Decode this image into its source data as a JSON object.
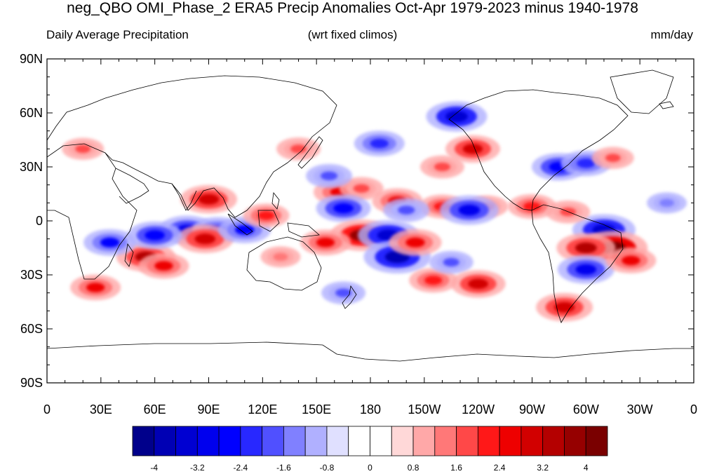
{
  "title": "neg_QBO OMI_Phase_2 ERA5 Precip Anomalies Oct-Apr 1979-2023 minus 1940-1978",
  "subtitle_left": "Daily Average Precipitation",
  "subtitle_center": "(wrt fixed climos)",
  "subtitle_right": "mm/day",
  "y_labels": [
    "90N",
    "60N",
    "30N",
    "0",
    "30S",
    "60S",
    "90S"
  ],
  "x_labels": [
    "0",
    "30E",
    "60E",
    "90E",
    "120E",
    "150E",
    "180",
    "150W",
    "120W",
    "90W",
    "60W",
    "30W",
    "0"
  ],
  "colorbar": {
    "colors": [
      "#00008b",
      "#0000b4",
      "#0000d2",
      "#0000ee",
      "#0000ff",
      "#2828ff",
      "#5050ff",
      "#8080ff",
      "#b0b0ff",
      "#e0e0ff",
      "#ffffff",
      "#ffffff",
      "#ffd8d8",
      "#ffa8a8",
      "#ff7878",
      "#ff4848",
      "#ff1818",
      "#ee0000",
      "#d20000",
      "#b40000",
      "#960000",
      "#7a0000"
    ],
    "labels": [
      "-4",
      "-3.2",
      "-2.4",
      "-1.6",
      "-0.8",
      "0",
      "0.8",
      "1.6",
      "2.4",
      "3.2",
      "4"
    ]
  },
  "anomalies": [
    {
      "lon": 163,
      "lat": 16,
      "value": 2.6
    },
    {
      "lon": 175,
      "lat": 18,
      "value": 1.8
    },
    {
      "lon": 195,
      "lat": 11,
      "value": 2.4
    },
    {
      "lon": 220,
      "lat": 8,
      "value": 2.0
    },
    {
      "lon": 245,
      "lat": 8,
      "value": 1.6
    },
    {
      "lon": 165,
      "lat": 7,
      "value": -2.8
    },
    {
      "lon": 200,
      "lat": 6,
      "value": -2.0
    },
    {
      "lon": 235,
      "lat": 6,
      "value": -3.2
    },
    {
      "lon": 175,
      "lat": -8,
      "value": 3.6
    },
    {
      "lon": 190,
      "lat": -8,
      "value": -3.4
    },
    {
      "lon": 195,
      "lat": -20,
      "value": -4.0
    },
    {
      "lon": 205,
      "lat": -12,
      "value": 2.6
    },
    {
      "lon": 215,
      "lat": -33,
      "value": 2.2
    },
    {
      "lon": 225,
      "lat": -23,
      "value": -1.8
    },
    {
      "lon": 240,
      "lat": -35,
      "value": 2.8
    },
    {
      "lon": 90,
      "lat": 12,
      "value": 3.0
    },
    {
      "lon": 78,
      "lat": -5,
      "value": -3.0
    },
    {
      "lon": 95,
      "lat": -5,
      "value": -2.4
    },
    {
      "lon": 88,
      "lat": -10,
      "value": 3.0
    },
    {
      "lon": 110,
      "lat": -5,
      "value": -2.6
    },
    {
      "lon": 55,
      "lat": -20,
      "value": 3.2
    },
    {
      "lon": 60,
      "lat": -8,
      "value": -2.8
    },
    {
      "lon": 35,
      "lat": -12,
      "value": -2.6
    },
    {
      "lon": 27,
      "lat": -37,
      "value": 2.4
    },
    {
      "lon": 65,
      "lat": -25,
      "value": 2.4
    },
    {
      "lon": 157,
      "lat": 25,
      "value": -2.0
    },
    {
      "lon": 185,
      "lat": 43,
      "value": -2.4
    },
    {
      "lon": 228,
      "lat": 58,
      "value": -3.4
    },
    {
      "lon": 237,
      "lat": 40,
      "value": 2.8
    },
    {
      "lon": 285,
      "lat": 30,
      "value": -2.8
    },
    {
      "lon": 300,
      "lat": 32,
      "value": -2.4
    },
    {
      "lon": 310,
      "lat": -5,
      "value": -3.6
    },
    {
      "lon": 315,
      "lat": -15,
      "value": 4.2
    },
    {
      "lon": 300,
      "lat": -15,
      "value": 3.2
    },
    {
      "lon": 300,
      "lat": -27,
      "value": -3.0
    },
    {
      "lon": 325,
      "lat": -22,
      "value": 2.4
    },
    {
      "lon": 270,
      "lat": 8,
      "value": 2.2
    },
    {
      "lon": 290,
      "lat": 5,
      "value": 1.8
    },
    {
      "lon": 288,
      "lat": -48,
      "value": 3.0
    },
    {
      "lon": 122,
      "lat": 3,
      "value": 2.0
    },
    {
      "lon": 130,
      "lat": -20,
      "value": 1.4
    },
    {
      "lon": 165,
      "lat": -40,
      "value": -1.8
    },
    {
      "lon": 140,
      "lat": 40,
      "value": 1.8
    },
    {
      "lon": 20,
      "lat": 40,
      "value": 1.6
    },
    {
      "lon": 220,
      "lat": 30,
      "value": 1.8
    },
    {
      "lon": 155,
      "lat": -12,
      "value": 2.4
    },
    {
      "lon": 315,
      "lat": 35,
      "value": 1.6
    },
    {
      "lon": 345,
      "lat": 10,
      "value": -1.4
    }
  ]
}
